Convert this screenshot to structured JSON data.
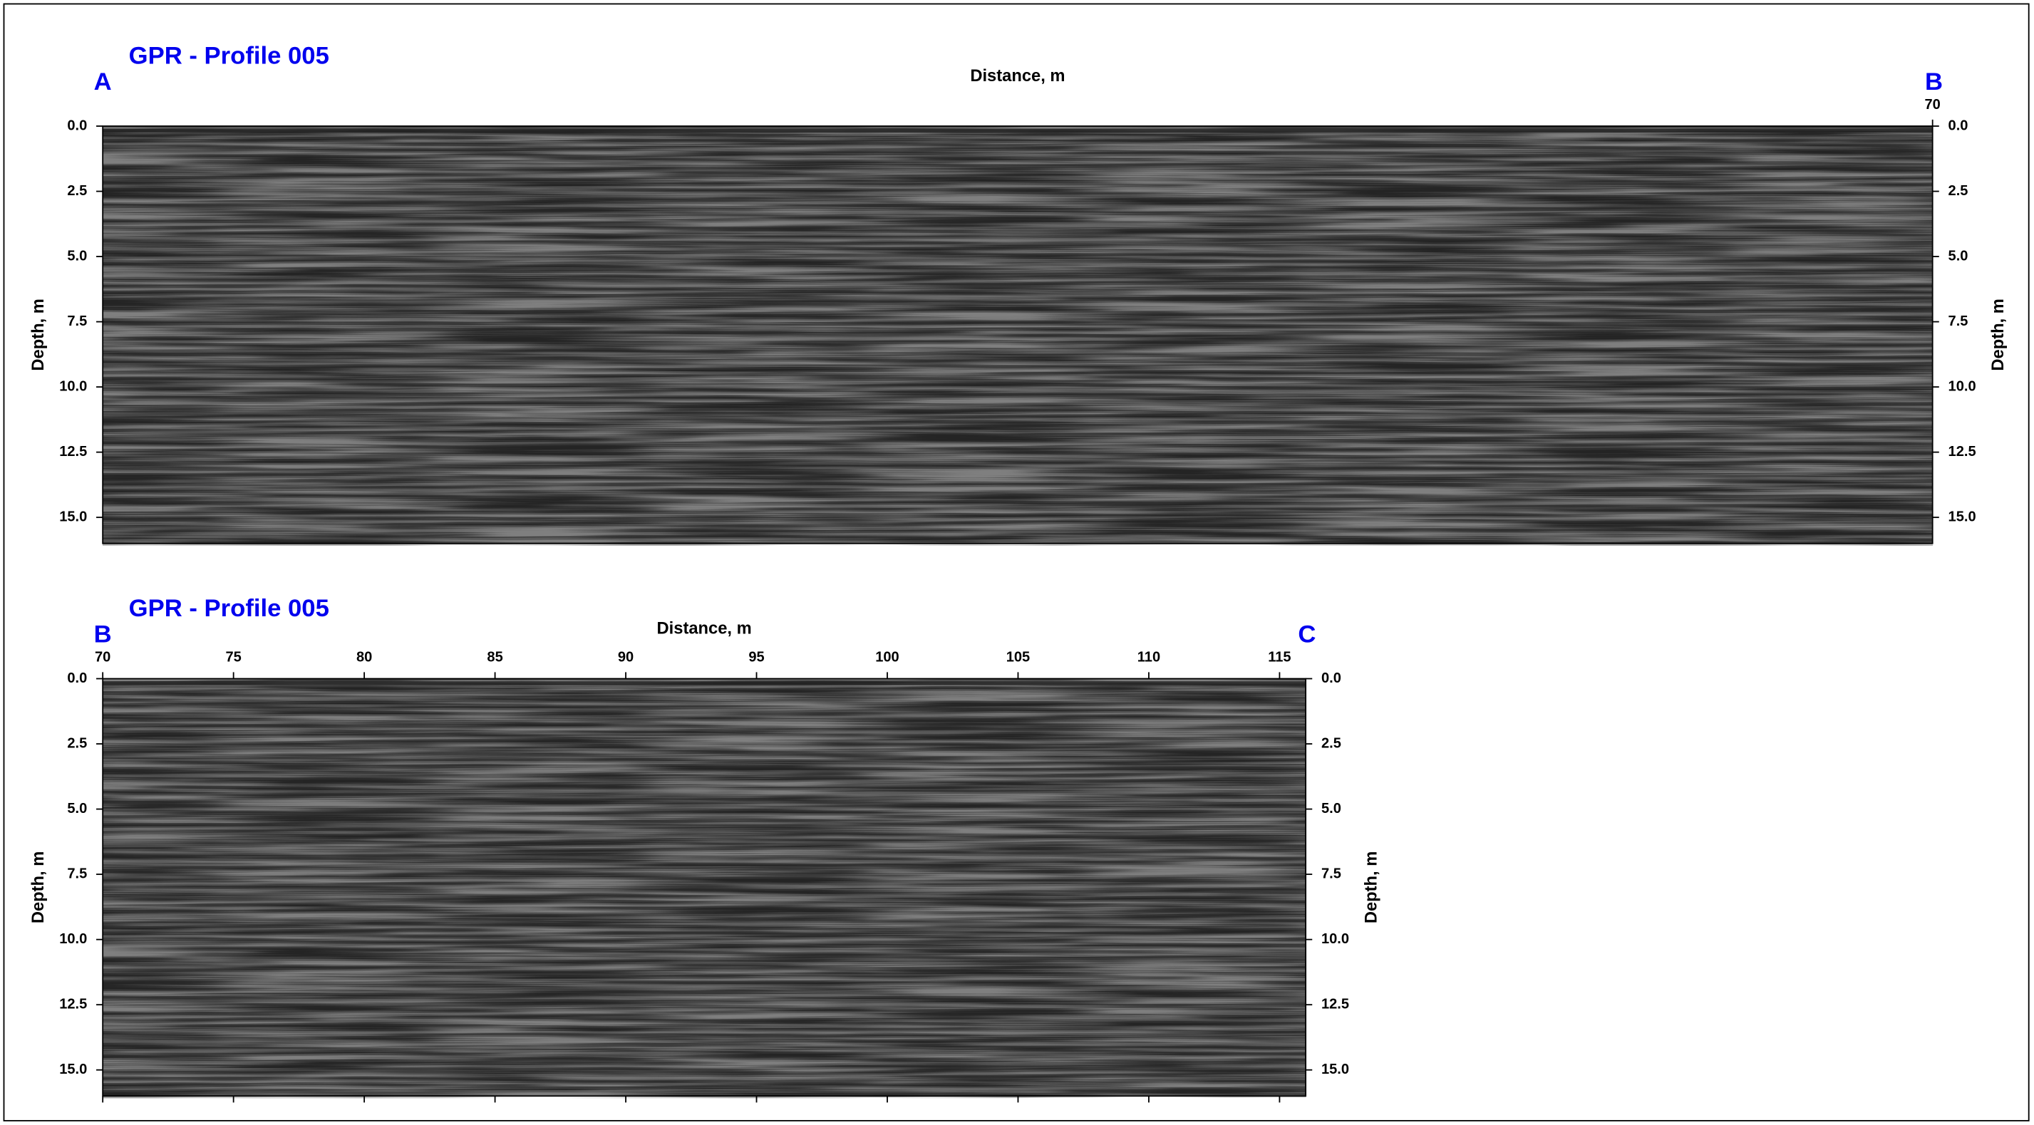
{
  "chart_data": [
    {
      "type": "radargram",
      "title": "GPR - Profile 005",
      "start_label": "A",
      "end_label": "B",
      "xlabel": "Distance, m",
      "ylabel": "Depth, m",
      "xlim": [
        0,
        70
      ],
      "xticks": [
        70
      ],
      "ylim": [
        0,
        16
      ],
      "yticks": [
        {
          "value": 0,
          "label": "0.0"
        },
        2.5,
        {
          "value": 5,
          "label": "5.0"
        },
        7.5,
        {
          "value": 10,
          "label": "10.0"
        },
        12.5,
        {
          "value": 15,
          "label": "15.0"
        }
      ],
      "bottom_ticks": false
    },
    {
      "type": "radargram",
      "title": "GPR - Profile 005",
      "start_label": "B",
      "end_label": "C",
      "xlabel": "Distance, m",
      "ylabel": "Depth, m",
      "xlim": [
        70,
        116
      ],
      "xticks": [
        70,
        75,
        80,
        85,
        90,
        95,
        100,
        105,
        110,
        115
      ],
      "ylim": [
        0,
        16
      ],
      "yticks": [
        {
          "value": 0,
          "label": "0.0"
        },
        2.5,
        {
          "value": 5,
          "label": "5.0"
        },
        7.5,
        {
          "value": 10,
          "label": "10.0"
        },
        12.5,
        {
          "value": 15,
          "label": "15.0"
        }
      ],
      "bottom_ticks": true
    }
  ]
}
